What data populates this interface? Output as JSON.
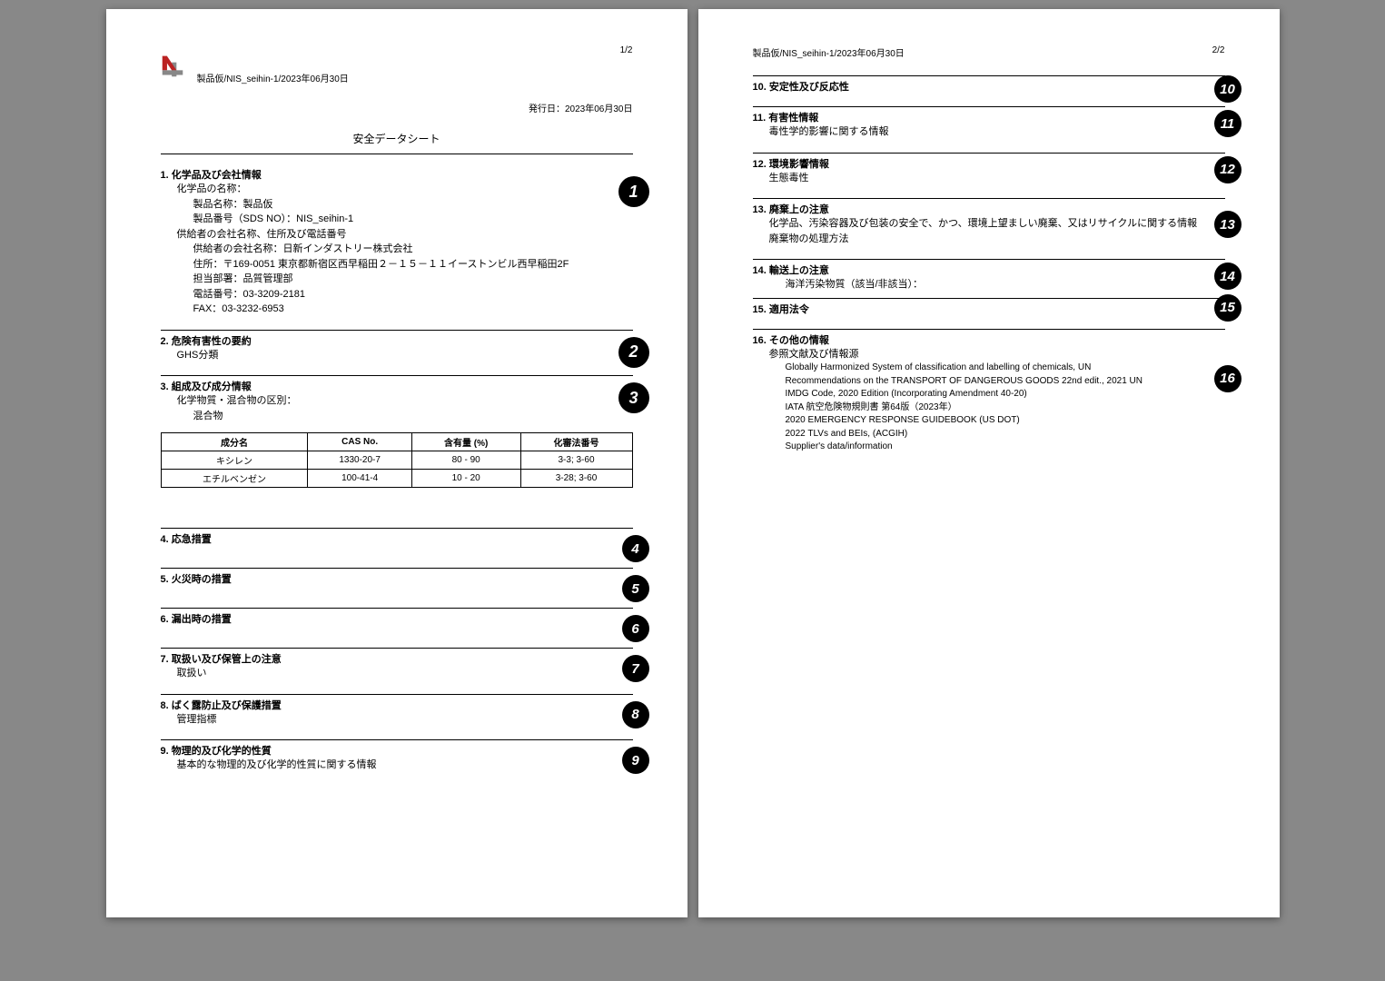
{
  "page1": {
    "page_num": "1/2",
    "header_line": "製品仮/NIS_seihin-1/2023年06月30日",
    "issue_date_label": "発行日：2023年06月30日",
    "doc_title": "安全データシート"
  },
  "s1": {
    "title": "1. 化学品及び会社情報",
    "l1": "化学品の名称：",
    "l2": "製品名称：製品仮",
    "l3": "製品番号（SDS NO）：NIS_seihin-1",
    "l4": "供給者の会社名称、住所及び電話番号",
    "l5": "供給者の会社名称：日新インダストリー株式会社",
    "l6": "住所：〒169-0051 東京都新宿区西早稲田２－１５－１１イーストンビル西早稲田2F",
    "l7": "担当部署：品質管理部",
    "l8": "電話番号：03-3209-2181",
    "l9": "FAX：03-3232-6953",
    "badge": "1"
  },
  "s2": {
    "title": "2. 危険有害性の要約",
    "l1": "GHS分類",
    "badge": "2"
  },
  "s3": {
    "title": "3. 組成及び成分情報",
    "l1": "化学物質・混合物の区別：",
    "l2": "混合物",
    "badge": "3",
    "table": {
      "cols": [
        "成分名",
        "CAS No.",
        "含有量 (%)",
        "化審法番号"
      ],
      "rows": [
        [
          "キシレン",
          "1330-20-7",
          "80 - 90",
          "3-3; 3-60"
        ],
        [
          "エチルベンゼン",
          "100-41-4",
          "10 - 20",
          "3-28; 3-60"
        ]
      ]
    }
  },
  "s4": {
    "title": "4. 応急措置",
    "badge": "4"
  },
  "s5": {
    "title": "5. 火災時の措置",
    "badge": "5"
  },
  "s6": {
    "title": "6. 漏出時の措置",
    "badge": "6"
  },
  "s7": {
    "title": "7. 取扱い及び保管上の注意",
    "l1": "取扱い",
    "badge": "7"
  },
  "s8": {
    "title": "8. ばく露防止及び保護措置",
    "l1": "管理指標",
    "badge": "8"
  },
  "s9": {
    "title": "9. 物理的及び化学的性質",
    "l1": "基本的な物理的及び化学的性質に関する情報",
    "badge": "9"
  },
  "page2": {
    "header_line": "製品仮/NIS_seihin-1/2023年06月30日",
    "page_num": "2/2"
  },
  "s10": {
    "title": "10. 安定性及び反応性",
    "badge": "10"
  },
  "s11": {
    "title": "11. 有害性情報",
    "l1": "毒性学的影響に関する情報",
    "badge": "11"
  },
  "s12": {
    "title": "12. 環境影響情報",
    "l1": "生態毒性",
    "badge": "12"
  },
  "s13": {
    "title": "13. 廃棄上の注意",
    "l1": "化学品、汚染容器及び包装の安全で、かつ、環境上望ましい廃棄、又はリサイクルに関する情報",
    "l2": "廃棄物の処理方法",
    "badge": "13"
  },
  "s14": {
    "title": "14. 輸送上の注意",
    "l1": "海洋汚染物質（該当/非該当）：",
    "badge": "14"
  },
  "s15": {
    "title": "15. 適用法令",
    "badge": "15"
  },
  "s16": {
    "title": "16. その他の情報",
    "l1": "参照文献及び情報源",
    "refs": [
      "Globally Harmonized System of classification and labelling of chemicals, UN",
      "Recommendations on the TRANSPORT OF DANGEROUS GOODS 22nd edit., 2021 UN",
      "IMDG Code, 2020 Edition (Incorporating Amendment 40-20)",
      "IATA 航空危険物規則書 第64版（2023年）",
      "2020 EMERGENCY RESPONSE GUIDEBOOK (US DOT)",
      "2022 TLVs and BEIs, (ACGIH)",
      "Supplier's data/information"
    ],
    "badge": "16"
  }
}
